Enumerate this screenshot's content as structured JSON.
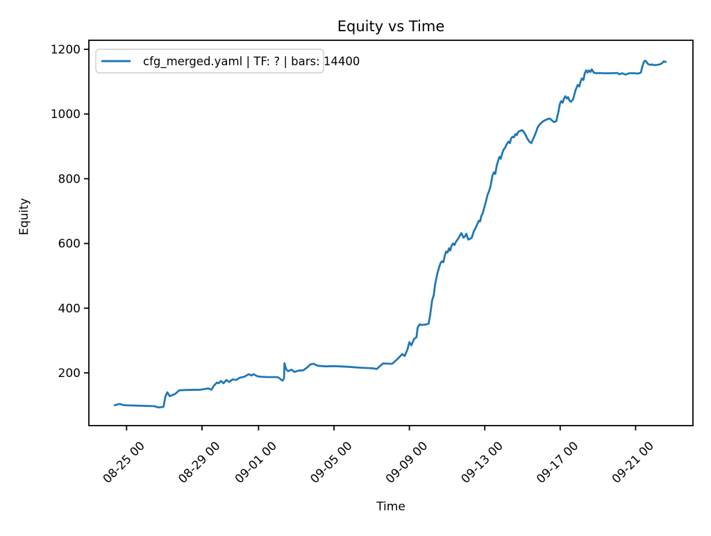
{
  "figure": {
    "background": "#ffffff",
    "line_color": "#1f77b4",
    "legend": {
      "label": "cfg_merged.yaml | TF: ? | bars: 14400"
    }
  },
  "chart_data": {
    "type": "line",
    "title": "Equity vs Time",
    "xlabel": "Time",
    "ylabel": "Equity",
    "legend_position": "upper left",
    "grid": false,
    "ylim": [
      37,
      1228
    ],
    "xlim": [
      "08-23 00:00",
      "09-24 01:00"
    ],
    "y_ticks": [
      200,
      400,
      600,
      800,
      1000,
      1200
    ],
    "x_ticks": [
      {
        "t": "08-25 00:00",
        "label": "08-25 00"
      },
      {
        "t": "08-29 00:00",
        "label": "08-29 00"
      },
      {
        "t": "09-01 00:00",
        "label": "09-01 00"
      },
      {
        "t": "09-05 00:00",
        "label": "09-05 00"
      },
      {
        "t": "09-09 00:00",
        "label": "09-09 00"
      },
      {
        "t": "09-13 00:00",
        "label": "09-13 00"
      },
      {
        "t": "09-17 00:00",
        "label": "09-17 00"
      },
      {
        "t": "09-21 00:00",
        "label": "09-21 00"
      }
    ],
    "series": [
      {
        "name": "cfg_merged.yaml | TF: ? | bars: 14400",
        "color": "#1f77b4",
        "times": [
          "08-24 09:00",
          "08-24 15:00",
          "08-24 21:00",
          "08-25 11:00",
          "08-26 11:00",
          "08-26 17:00",
          "08-26 23:00",
          "08-27 01:30",
          "08-27 04:00",
          "08-27 07:00",
          "08-27 14:00",
          "08-27 19:00",
          "08-28 04:00",
          "08-28 22:00",
          "08-29 04:00",
          "08-29 08:00",
          "08-29 12:00",
          "08-29 15:00",
          "08-29 19:00",
          "08-29 21:30",
          "08-30 00:00",
          "08-30 03:30",
          "08-30 07:00",
          "08-30 10:30",
          "08-30 15:00",
          "08-30 19:30",
          "08-31 00:00",
          "08-31 06:00",
          "08-31 11:30",
          "08-31 15:00",
          "08-31 17:30",
          "08-31 22:00",
          "09-01 02:30",
          "09-01 11:00",
          "09-02 00:30",
          "09-02 06:30",
          "09-02 08:30",
          "09-02 09:00",
          "09-02 11:00",
          "09-02 13:30",
          "09-02 18:00",
          "09-02 21:30",
          "09-03 03:00",
          "09-03 09:00",
          "09-03 14:30",
          "09-03 18:00",
          "09-03 22:00",
          "09-04 03:30",
          "09-04 14:00",
          "09-05 00:00",
          "09-05 16:30",
          "09-06 10:00",
          "09-07 02:00",
          "09-07 06:30",
          "09-07 11:00",
          "09-07 14:30",
          "09-08 02:00",
          "09-08 09:00",
          "09-08 12:30",
          "09-08 15:00",
          "09-08 18:00",
          "09-08 21:30",
          "09-09 00:00",
          "09-09 02:30",
          "09-09 06:00",
          "09-09 09:00",
          "09-09 10:30",
          "09-09 13:00",
          "09-09 16:00",
          "09-09 22:00",
          "09-10 00:30",
          "09-10 02:30",
          "09-10 05:00",
          "09-10 07:00",
          "09-10 08:30",
          "09-10 11:30",
          "09-10 14:00",
          "09-10 15:45",
          "09-10 17:30",
          "09-10 19:15",
          "09-10 21:00",
          "09-10 22:45",
          "09-11 00:30",
          "09-11 02:30",
          "09-11 04:00",
          "09-11 06:00",
          "09-11 07:45",
          "09-11 09:30",
          "09-11 11:15",
          "09-11 14:00",
          "09-11 16:30",
          "09-11 18:15",
          "09-11 21:00",
          "09-11 22:45",
          "09-12 00:30",
          "09-12 03:00",
          "09-12 05:45",
          "09-12 07:30",
          "09-12 10:00",
          "09-12 11:45",
          "09-12 13:40",
          "09-12 16:20",
          "09-12 18:00",
          "09-12 19:40",
          "09-12 21:35",
          "09-12 23:15",
          "09-13 01:00",
          "09-13 03:35",
          "09-13 05:30",
          "09-13 07:10",
          "09-13 09:50",
          "09-13 11:45",
          "09-13 13:25",
          "09-13 15:05",
          "09-13 17:00",
          "09-13 18:45",
          "09-13 20:25",
          "09-13 22:20",
          "09-14 00:00",
          "09-14 01:40",
          "09-14 03:35",
          "09-14 06:15",
          "09-14 08:00",
          "09-14 09:35",
          "09-14 11:30",
          "09-14 13:10",
          "09-14 15:05",
          "09-14 16:50",
          "09-14 18:30",
          "09-14 21:05",
          "09-14 23:45",
          "09-15 01:40",
          "09-15 03:20",
          "09-15 06:00",
          "09-15 08:40",
          "09-15 11:15",
          "09-15 14:00",
          "09-15 16:35",
          "09-15 19:10",
          "09-15 21:50",
          "09-15 23:45",
          "09-16 02:25",
          "09-16 05:45",
          "09-16 08:25",
          "09-16 11:00",
          "09-16 13:40",
          "09-16 16:20",
          "09-16 19:00",
          "09-16 21:35",
          "09-16 23:30",
          "09-17 01:10",
          "09-17 03:05",
          "09-17 04:50",
          "09-17 06:30",
          "09-17 08:25",
          "09-17 10:05",
          "09-17 11:45",
          "09-17 13:40",
          "09-17 16:20",
          "09-17 18:00",
          "09-17 19:40",
          "09-17 22:20",
          "09-18 00:15",
          "09-18 01:55",
          "09-18 03:35",
          "09-18 05:30",
          "09-18 07:10",
          "09-18 09:05",
          "09-18 10:50",
          "09-18 12:30",
          "09-18 14:25",
          "09-18 16:05",
          "09-18 18:45",
          "09-18 22:20",
          "09-19 02:40",
          "09-19 07:00",
          "09-19 15:50",
          "09-20 00:45",
          "09-20 03:20",
          "09-20 07:00",
          "09-20 11:15",
          "09-20 15:35",
          "09-20 22:50",
          "09-21 03:05",
          "09-21 06:45",
          "09-21 08:25",
          "09-21 10:20",
          "09-21 12:00",
          "09-21 13:40",
          "09-21 15:35",
          "09-21 18:15",
          "09-21 20:55",
          "09-22 00:15",
          "09-22 03:50",
          "09-22 07:25",
          "09-22 10:05",
          "09-22 11:45",
          "09-22 14:25"
        ],
        "values": [
          100,
          104,
          100,
          99,
          97,
          93,
          95,
          128,
          140,
          128,
          135,
          146,
          147,
          148,
          150,
          152,
          148,
          160,
          170,
          168,
          175,
          168,
          178,
          172,
          180,
          178,
          185,
          188,
          196,
          192,
          196,
          190,
          188,
          187,
          187,
          176,
          183,
          230,
          212,
          205,
          210,
          203,
          207,
          208,
          218,
          226,
          228,
          222,
          220,
          221,
          219,
          216,
          214,
          212,
          222,
          229,
          228,
          243,
          252,
          258,
          252,
          272,
          295,
          285,
          305,
          310,
          340,
          350,
          348,
          350,
          352,
          380,
          425,
          440,
          470,
          505,
          528,
          540,
          545,
          542,
          562,
          575,
          572,
          585,
          578,
          595,
          600,
          595,
          605,
          614,
          625,
          632,
          618,
          622,
          630,
          612,
          615,
          618,
          638,
          645,
          655,
          670,
          668,
          685,
          695,
          710,
          725,
          750,
          762,
          775,
          810,
          820,
          815,
          840,
          855,
          868,
          862,
          880,
          890,
          895,
          905,
          915,
          910,
          925,
          930,
          928,
          938,
          935,
          945,
          948,
          950,
          945,
          938,
          925,
          915,
          910,
          925,
          940,
          958,
          968,
          972,
          978,
          982,
          985,
          986,
          980,
          975,
          978,
          1005,
          1030,
          1040,
          1035,
          1048,
          1055,
          1048,
          1052,
          1042,
          1038,
          1045,
          1060,
          1075,
          1090,
          1085,
          1100,
          1110,
          1105,
          1125,
          1135,
          1128,
          1135,
          1130,
          1138,
          1128,
          1126,
          1127,
          1126,
          1126,
          1127,
          1123,
          1126,
          1122,
          1126,
          1126,
          1125,
          1128,
          1145,
          1160,
          1165,
          1162,
          1155,
          1152,
          1153,
          1151,
          1152,
          1154,
          1158,
          1163,
          1161
        ]
      }
    ]
  }
}
